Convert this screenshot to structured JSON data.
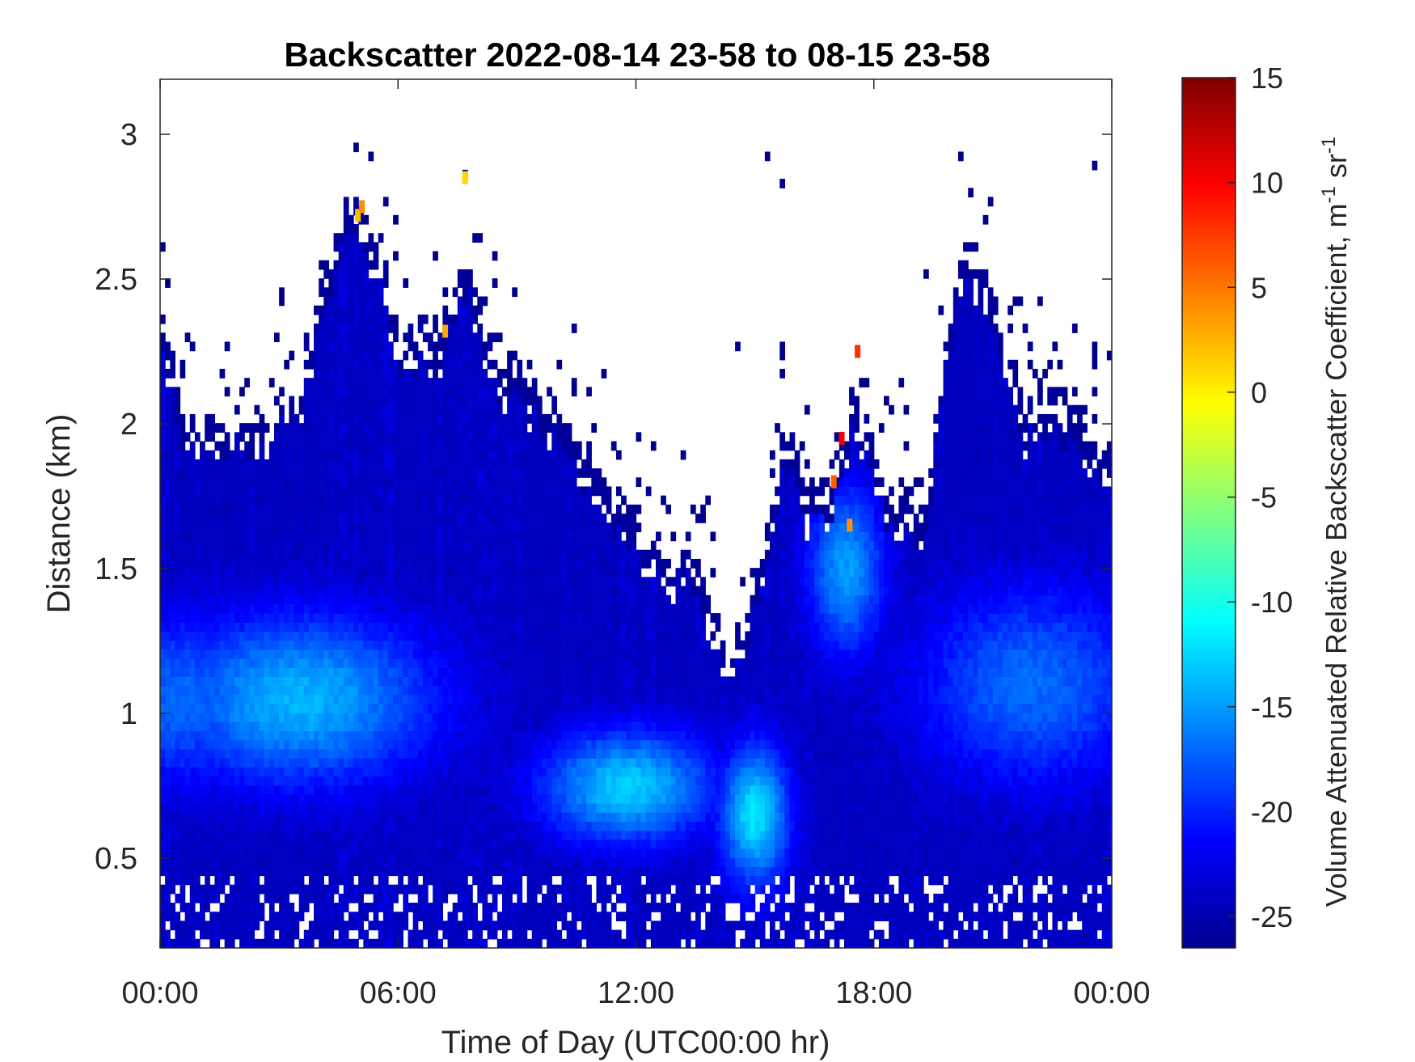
{
  "chart_data": {
    "type": "heatmap",
    "title": "Backscatter 2022-08-14 23-58 to 08-15 23-58",
    "xlabel": "Time of Day (UTC00:00 hr)",
    "ylabel": "Distance (km)",
    "x_ticks": [
      {
        "value": 0,
        "label": "00:00"
      },
      {
        "value": 6,
        "label": "06:00"
      },
      {
        "value": 12,
        "label": "12:00"
      },
      {
        "value": 18,
        "label": "18:00"
      },
      {
        "value": 24,
        "label": "00:00"
      }
    ],
    "y_ticks": [
      {
        "value": 0.5,
        "label": "0.5"
      },
      {
        "value": 1,
        "label": "1"
      },
      {
        "value": 1.5,
        "label": "1.5"
      },
      {
        "value": 2,
        "label": "2"
      },
      {
        "value": 2.5,
        "label": "2.5"
      },
      {
        "value": 3,
        "label": "3"
      }
    ],
    "xlim": [
      0,
      24
    ],
    "ylim": [
      0.19,
      3.19
    ],
    "colorbar": {
      "label": "Volume Attenuated Relative Backscatter Coefficient, m",
      "label_unit_tail": " sr",
      "superscript": "-1",
      "clim": [
        -26.5,
        15
      ],
      "colormap": "jet",
      "ticks": [
        {
          "value": -25,
          "label": "-25"
        },
        {
          "value": -20,
          "label": "-20"
        },
        {
          "value": -15,
          "label": "-15"
        },
        {
          "value": -10,
          "label": "-10"
        },
        {
          "value": -5,
          "label": "-5"
        },
        {
          "value": 0,
          "label": "0"
        },
        {
          "value": 5,
          "label": "5"
        },
        {
          "value": 10,
          "label": "10"
        },
        {
          "value": 15,
          "label": "15"
        }
      ]
    },
    "cloud_top_km": [
      {
        "t": 0,
        "h": 2.45
      },
      {
        "t": 0.5,
        "h": 2.05
      },
      {
        "t": 1.5,
        "h": 2.0
      },
      {
        "t": 2.5,
        "h": 2.05
      },
      {
        "t": 3.5,
        "h": 2.15
      },
      {
        "t": 4.0,
        "h": 2.45
      },
      {
        "t": 4.5,
        "h": 2.7
      },
      {
        "t": 5.0,
        "h": 2.75
      },
      {
        "t": 5.5,
        "h": 2.65
      },
      {
        "t": 6.0,
        "h": 2.3
      },
      {
        "t": 7.0,
        "h": 2.35
      },
      {
        "t": 7.8,
        "h": 2.55
      },
      {
        "t": 8.5,
        "h": 2.25
      },
      {
        "t": 9.5,
        "h": 2.15
      },
      {
        "t": 10.5,
        "h": 1.95
      },
      {
        "t": 11.5,
        "h": 1.75
      },
      {
        "t": 12.5,
        "h": 1.6
      },
      {
        "t": 13.5,
        "h": 1.55
      },
      {
        "t": 14.0,
        "h": 1.3
      },
      {
        "t": 14.7,
        "h": 1.3
      },
      {
        "t": 15.3,
        "h": 1.65
      },
      {
        "t": 15.8,
        "h": 2.0
      },
      {
        "t": 16.3,
        "h": 1.75
      },
      {
        "t": 17.0,
        "h": 1.85
      },
      {
        "t": 17.5,
        "h": 2.1
      },
      {
        "t": 18.5,
        "h": 1.75
      },
      {
        "t": 19.3,
        "h": 1.75
      },
      {
        "t": 19.8,
        "h": 2.3
      },
      {
        "t": 20.3,
        "h": 2.65
      },
      {
        "t": 21.0,
        "h": 2.45
      },
      {
        "t": 21.8,
        "h": 2.05
      },
      {
        "t": 22.5,
        "h": 2.1
      },
      {
        "t": 23.2,
        "h": 2.05
      },
      {
        "t": 24.0,
        "h": 1.95
      }
    ],
    "layers": [
      {
        "t": 3.5,
        "h": 1.05,
        "dt": 3.5,
        "dh": 0.3,
        "v": -14
      },
      {
        "t": 11.8,
        "h": 0.75,
        "dt": 2.2,
        "dh": 0.2,
        "v": -13
      },
      {
        "t": 15.0,
        "h": 0.65,
        "dt": 0.9,
        "dh": 0.25,
        "v": -12
      },
      {
        "t": 0.5,
        "h": 1.05,
        "dt": 2.0,
        "dh": 0.3,
        "v": -17
      },
      {
        "t": 22.0,
        "h": 1.1,
        "dt": 3.0,
        "dh": 0.35,
        "v": -17
      },
      {
        "t": 17.3,
        "h": 1.5,
        "dt": 1.0,
        "dh": 0.3,
        "v": -15
      }
    ],
    "hot_spots": [
      {
        "t": 5.0,
        "h": 2.72,
        "v": 2
      },
      {
        "t": 5.1,
        "h": 2.75,
        "v": 4
      },
      {
        "t": 7.2,
        "h": 2.32,
        "v": 3
      },
      {
        "t": 7.7,
        "h": 2.85,
        "v": 1
      },
      {
        "t": 17.0,
        "h": 1.8,
        "v": 6
      },
      {
        "t": 17.2,
        "h": 1.95,
        "v": 10
      },
      {
        "t": 17.6,
        "h": 2.25,
        "v": 8
      },
      {
        "t": 17.4,
        "h": 1.65,
        "v": 4
      }
    ]
  }
}
